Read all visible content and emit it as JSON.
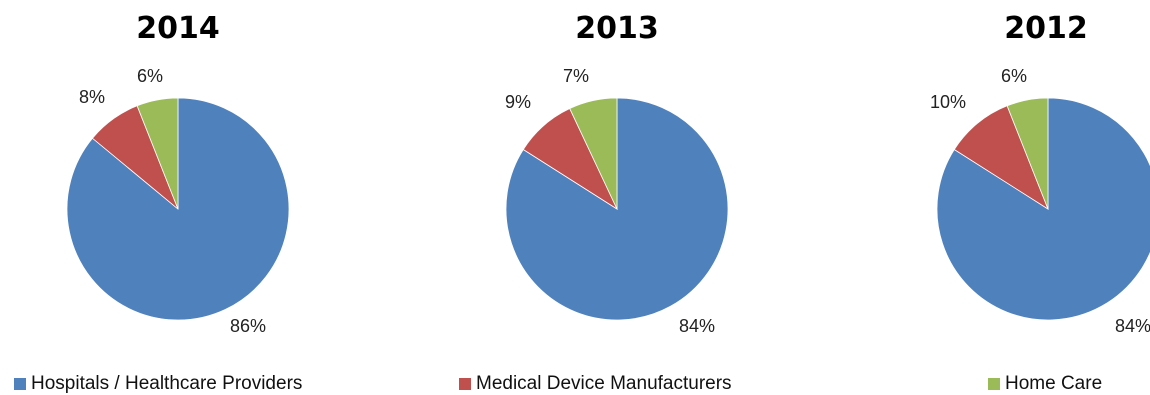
{
  "chart_data": [
    {
      "type": "pie",
      "title": "2014",
      "labels": [
        "Hospitals / Healthcare Providers",
        "Medical Device Manufacturers",
        "Home Care"
      ],
      "values": [
        86,
        8,
        6
      ],
      "value_labels": [
        "86%",
        "8%",
        "6%"
      ],
      "colors": [
        "#4F81BD",
        "#C0504D",
        "#9BBB59"
      ]
    },
    {
      "type": "pie",
      "title": "2013",
      "labels": [
        "Hospitals / Healthcare Providers",
        "Medical Device Manufacturers",
        "Home Care"
      ],
      "values": [
        84,
        9,
        7
      ],
      "value_labels": [
        "84%",
        "9%",
        "7%"
      ],
      "colors": [
        "#4F81BD",
        "#C0504D",
        "#9BBB59"
      ]
    },
    {
      "type": "pie",
      "title": "2012",
      "labels": [
        "Hospitals / Healthcare Providers",
        "Medical Device Manufacturers",
        "Home Care"
      ],
      "values": [
        84,
        10,
        6
      ],
      "value_labels": [
        "84%",
        "10%",
        "6%"
      ],
      "colors": [
        "#4F81BD",
        "#C0504D",
        "#9BBB59"
      ]
    }
  ],
  "legend": {
    "placement": "bottom",
    "items": [
      {
        "label": "Hospitals / Healthcare Providers",
        "color": "#4F81BD"
      },
      {
        "label": "Medical Device Manufacturers",
        "color": "#C0504D"
      },
      {
        "label": "Home Care",
        "color": "#9BBB59"
      }
    ]
  }
}
